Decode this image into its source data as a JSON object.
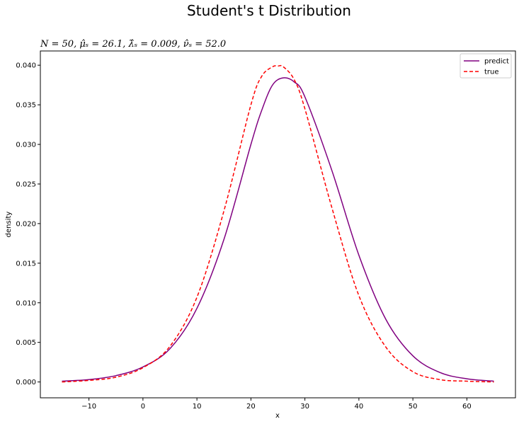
{
  "chart_data": {
    "type": "line",
    "title": "Student's t Distribution",
    "subtitle": "N = 50, μ̂ₛ = 26.1, λ̂ₛ = 0.009, ν̂ₛ = 52.0",
    "xlabel": "x",
    "ylabel": "density",
    "xlim": [
      -19,
      69
    ],
    "ylim": [
      -0.002,
      0.0418
    ],
    "xticks": [
      -10,
      0,
      10,
      20,
      30,
      40,
      50,
      60
    ],
    "xtick_labels": [
      "−10",
      "0",
      "10",
      "20",
      "30",
      "40",
      "50",
      "60"
    ],
    "yticks": [
      0.0,
      0.005,
      0.01,
      0.015,
      0.02,
      0.025,
      0.03,
      0.035,
      0.04
    ],
    "ytick_labels": [
      "0.000",
      "0.005",
      "0.010",
      "0.015",
      "0.020",
      "0.025",
      "0.030",
      "0.035",
      "0.040"
    ],
    "grid": false,
    "legend_position": "top-right",
    "series": [
      {
        "name": "predict",
        "color": "#800080",
        "style": "solid",
        "x": [
          -15,
          -10,
          -5,
          0,
          5,
          10,
          15,
          20,
          22,
          24,
          26,
          28,
          30,
          35,
          40,
          45,
          50,
          55,
          60,
          65
        ],
        "y": [
          0.0001,
          0.0003,
          0.0008,
          0.0019,
          0.0042,
          0.0093,
          0.018,
          0.03,
          0.0343,
          0.0375,
          0.0384,
          0.0379,
          0.036,
          0.0267,
          0.016,
          0.0079,
          0.0033,
          0.0012,
          0.0004,
          0.0001
        ]
      },
      {
        "name": "true",
        "color": "#ff0000",
        "style": "dashed",
        "x": [
          -15,
          -10,
          -5,
          0,
          5,
          10,
          15,
          20,
          22,
          24,
          25,
          26,
          28,
          30,
          35,
          40,
          45,
          50,
          55,
          60,
          65
        ],
        "y": [
          0.0,
          0.0002,
          0.0006,
          0.0018,
          0.0045,
          0.0107,
          0.0216,
          0.035,
          0.0386,
          0.0398,
          0.0399,
          0.0398,
          0.0382,
          0.0345,
          0.022,
          0.0109,
          0.0044,
          0.0013,
          0.0003,
          0.0001,
          0.0
        ]
      }
    ]
  }
}
